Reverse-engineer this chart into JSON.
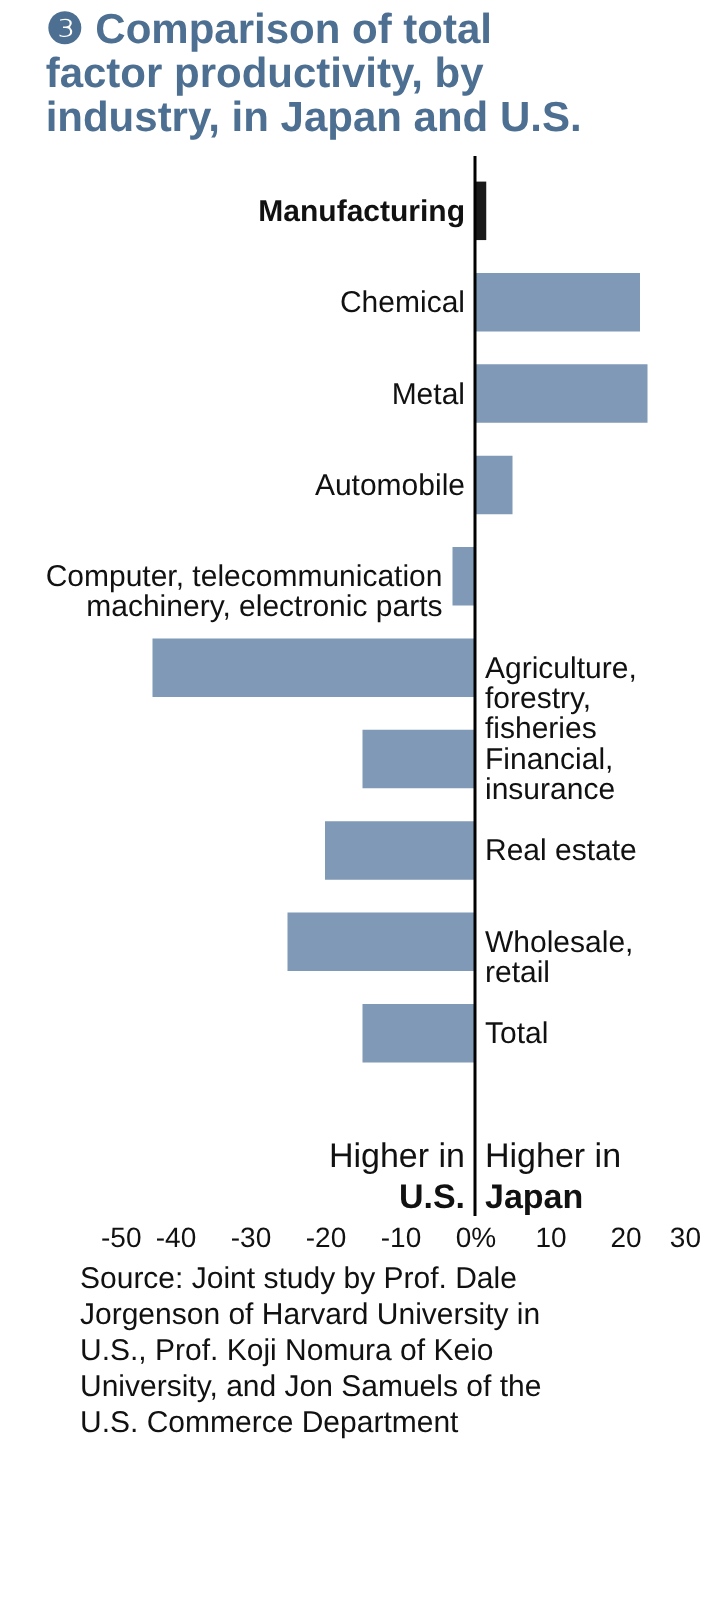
{
  "chart_data": {
    "type": "bar",
    "orientation": "horizontal",
    "title": "❸ Comparison of total factor productivity, by industry, in Japan and U.S.",
    "categories": [
      "Manufacturing",
      "Chemical",
      "Metal",
      "Automobile",
      "Computer, telecommunication machinery, electronic parts",
      "Agriculture, forestry, fisheries",
      "Financial, insurance",
      "Real estate",
      "Wholesale, retail",
      "Total"
    ],
    "values": [
      1.5,
      22,
      23,
      5,
      -3,
      -43,
      -15,
      -20,
      -25,
      -15
    ],
    "colors": [
      "#1a1a1a",
      "#7f99b6",
      "#7f99b6",
      "#7f99b6",
      "#7f99b6",
      "#7f99b6",
      "#7f99b6",
      "#7f99b6",
      "#7f99b6",
      "#7f99b6"
    ],
    "xlim": [
      -50,
      30
    ],
    "xticks": [
      -50,
      -40,
      -30,
      -20,
      -10,
      {
        "value": 0,
        "label": "0%"
      },
      10,
      20,
      30
    ],
    "grid": false,
    "annotations": [
      "Higher in U.S.",
      "Higher in Japan",
      "Source: Joint study by Prof. Dale Jorgenson of Harvard University in U.S., Prof. Koji Nomura of Keio University, and Jon Samuels of the U.S. Commerce Department"
    ]
  }
}
